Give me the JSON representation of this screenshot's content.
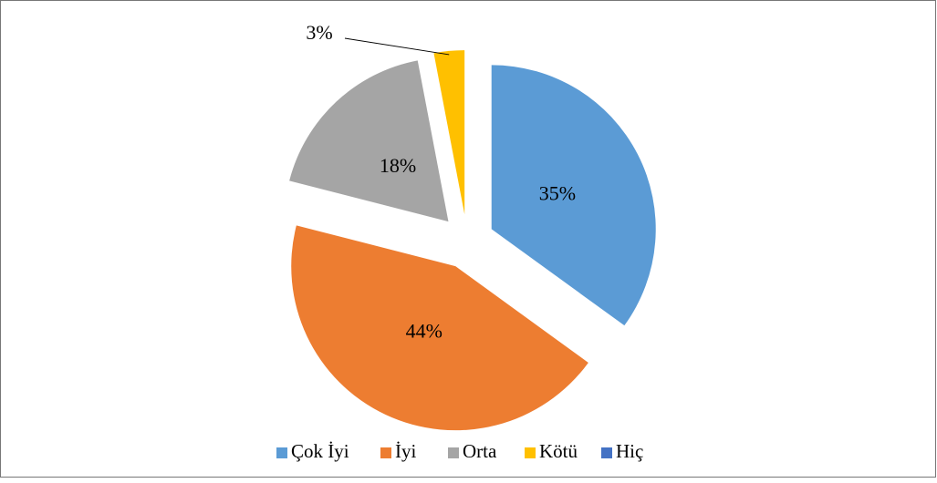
{
  "chart_data": {
    "type": "pie",
    "categories": [
      "Çok İyi",
      "İyi",
      "Orta",
      "Kötü",
      "Hiç"
    ],
    "values": [
      35,
      44,
      18,
      3,
      0
    ],
    "value_labels": [
      "35%",
      "44%",
      "18%",
      "3%",
      null
    ],
    "colors": [
      "#5b9bd5",
      "#ed7d31",
      "#a5a5a5",
      "#ffc000",
      "#4472c4"
    ],
    "legend": "bottom"
  }
}
